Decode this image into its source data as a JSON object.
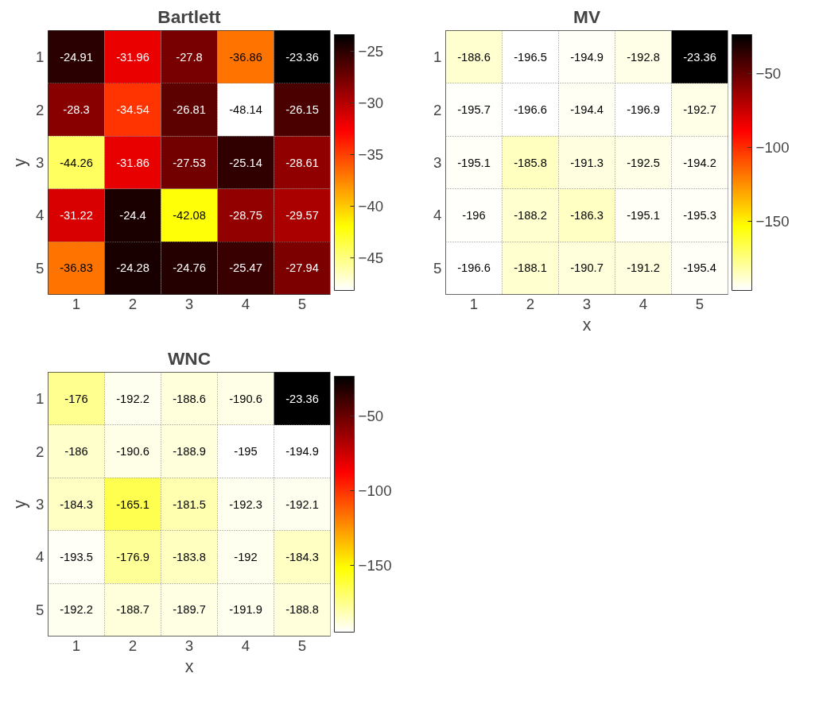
{
  "chart_data": [
    {
      "type": "heatmap",
      "title": "Bartlett",
      "ylabel": "y",
      "categories": [
        "1",
        "2",
        "3",
        "4",
        "5"
      ],
      "y_categories": [
        "1",
        "2",
        "3",
        "4",
        "5"
      ],
      "cells": [
        [
          -24.91,
          -31.96,
          -27.8,
          -36.86,
          -23.36
        ],
        [
          -28.3,
          -34.54,
          -26.81,
          -48.14,
          -26.15
        ],
        [
          -44.26,
          -31.86,
          -27.53,
          -25.14,
          -28.61
        ],
        [
          -31.22,
          -24.4,
          -42.08,
          -28.75,
          -29.57
        ],
        [
          -36.83,
          -24.28,
          -24.76,
          -25.47,
          -27.94
        ]
      ],
      "clim": [
        -48.14,
        -23.36
      ],
      "cticks": [
        -45,
        -40,
        -35,
        -30,
        -25
      ],
      "data_labels": true,
      "grid": true
    },
    {
      "type": "heatmap",
      "title": "MV",
      "xlabel": "x",
      "categories": [
        "1",
        "2",
        "3",
        "4",
        "5"
      ],
      "y_categories": [
        "1",
        "2",
        "3",
        "4",
        "5"
      ],
      "cells": [
        [
          -188.6,
          -196.5,
          -194.9,
          -192.8,
          -23.36
        ],
        [
          -195.7,
          -196.6,
          -194.4,
          -196.9,
          -192.7
        ],
        [
          -195.1,
          -185.8,
          -191.3,
          -192.5,
          -194.2
        ],
        [
          -196,
          -188.2,
          -186.3,
          -195.1,
          -195.3
        ],
        [
          -196.6,
          -188.1,
          -190.7,
          -191.2,
          -195.4
        ]
      ],
      "clim": [
        -196.9,
        -23.36
      ],
      "cticks": [
        -150,
        -100,
        -50
      ],
      "data_labels": true,
      "grid": true
    },
    {
      "type": "heatmap",
      "title": "WNC",
      "xlabel": "x",
      "ylabel": "y",
      "categories": [
        "1",
        "2",
        "3",
        "4",
        "5"
      ],
      "y_categories": [
        "1",
        "2",
        "3",
        "4",
        "5"
      ],
      "cells": [
        [
          -176,
          -192.2,
          -188.6,
          -190.6,
          -23.36
        ],
        [
          -186,
          -190.6,
          -188.9,
          -195,
          -194.9
        ],
        [
          -184.3,
          -165.1,
          -181.5,
          -192.3,
          -192.1
        ],
        [
          -193.5,
          -176.9,
          -183.8,
          -192,
          -184.3
        ],
        [
          -192.2,
          -188.7,
          -189.7,
          -191.9,
          -188.8
        ]
      ],
      "clim": [
        -195,
        -23.36
      ],
      "cticks": [
        -150,
        -100,
        -50
      ],
      "data_labels": true,
      "grid": true
    }
  ]
}
